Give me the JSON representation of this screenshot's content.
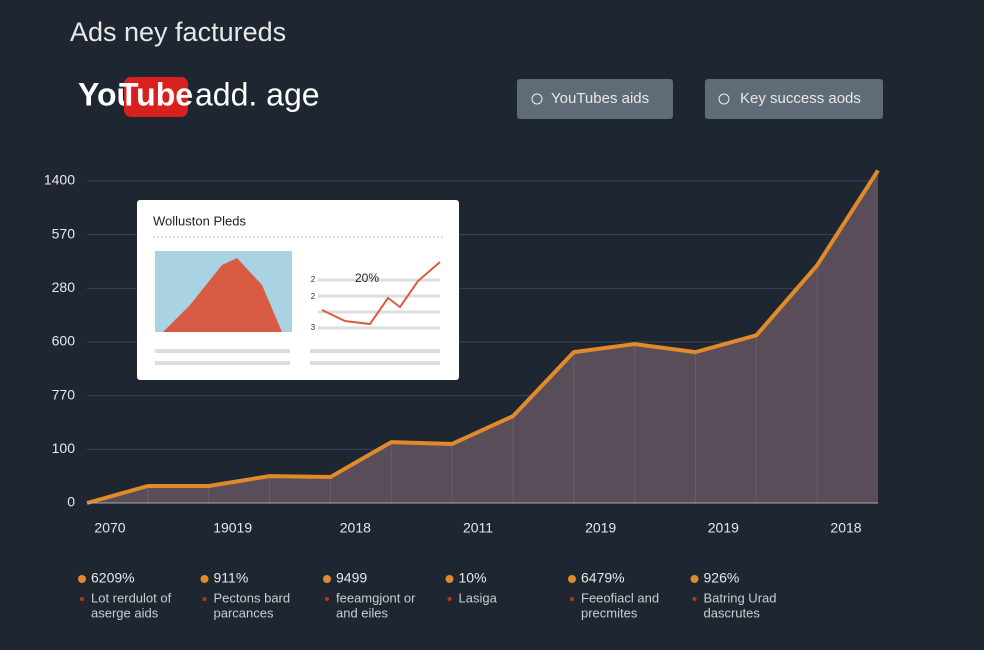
{
  "header": {
    "title": "Ads ney factureds",
    "logo_you": "You",
    "logo_tube": "Tube",
    "logo_rest": "add. age"
  },
  "buttons": [
    {
      "label": "YouTubes aids"
    },
    {
      "label": "Key success aods"
    }
  ],
  "inset_card": {
    "title": "Wolluston Pleds",
    "percent": "20%",
    "side_labels": [
      "2",
      "2",
      "3"
    ]
  },
  "chart_data": {
    "type": "area",
    "y_axis_labels": [
      "0",
      "100",
      "770",
      "600",
      "280",
      "570",
      "1400"
    ],
    "x_axis_labels": [
      "2070",
      "19019",
      "2018",
      "2011",
      "2019",
      "2019",
      "2018"
    ],
    "ylim": [
      0,
      1450
    ],
    "series": [
      {
        "color": "#e08a2a",
        "fill": "#5a4d5a",
        "values": [
          0,
          74,
          74,
          117,
          113,
          265,
          257,
          378,
          657,
          692,
          657,
          730,
          1035,
          1448
        ]
      }
    ],
    "grid": true
  },
  "stats": [
    {
      "value": "6209%",
      "lines": [
        "Lot rerdulot of",
        "aserge aids"
      ]
    },
    {
      "value": "911%",
      "lines": [
        "Pectons bard",
        "parcances"
      ]
    },
    {
      "value": "9499",
      "lines": [
        "feeamgjont or",
        "and eiles"
      ]
    },
    {
      "value": "10%",
      "lines": [
        "Lasiga"
      ]
    },
    {
      "value": "6479%",
      "lines": [
        "Feeofiacl and",
        "precmites"
      ]
    },
    {
      "value": "926%",
      "lines": [
        "Batring Urad",
        "dascrutes"
      ]
    }
  ]
}
